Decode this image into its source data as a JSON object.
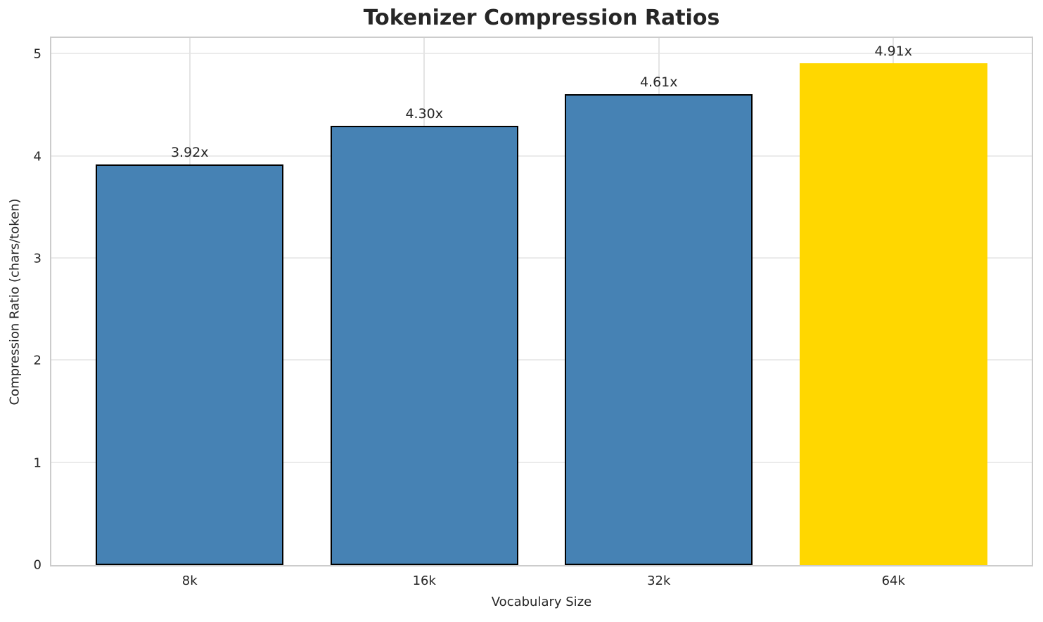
{
  "title": "Tokenizer Compression Ratios",
  "chart_data": {
    "type": "bar",
    "title": "Tokenizer Compression Ratios",
    "xlabel": "Vocabulary Size",
    "ylabel": "Compression Ratio (chars/token)",
    "categories": [
      "8k",
      "16k",
      "32k",
      "64k"
    ],
    "values": [
      3.92,
      4.3,
      4.61,
      4.91
    ],
    "bar_labels": [
      "3.92x",
      "4.30x",
      "4.61x",
      "4.91x"
    ],
    "bar_colors": [
      "#4682B4",
      "#4682B4",
      "#4682B4",
      "#FFD700"
    ],
    "bar_edge_colors": [
      "#000000",
      "#000000",
      "#000000",
      "none"
    ],
    "highlight_index": 3,
    "ylim": [
      0,
      5.16
    ],
    "yticks": [
      0,
      1,
      2,
      3,
      4,
      5
    ],
    "xlim": [
      -0.59,
      3.59
    ],
    "bar_width_units": 0.8,
    "grid": true,
    "legend": "none",
    "colors": {
      "grid_horizontal": "#ebebeb",
      "grid_vertical": "#e4e4e4",
      "spine": "#cccccc",
      "text": "#262626",
      "background": "#ffffff"
    }
  }
}
